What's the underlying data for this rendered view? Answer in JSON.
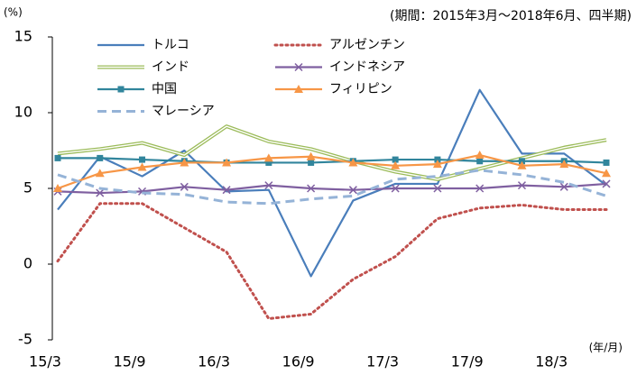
{
  "chart_data": {
    "type": "line",
    "y_unit": "(%)",
    "note": "(期間：2015年3月～2018年6月、四半期)",
    "x_unit": "(年/月)",
    "categories": [
      "15/3",
      null,
      "15/9",
      null,
      "16/3",
      null,
      "16/9",
      null,
      "17/3",
      null,
      "17/9",
      null,
      "18/3",
      null
    ],
    "ylim": [
      -5,
      15
    ],
    "yticks": [
      15,
      10,
      5,
      0,
      -5
    ],
    "grid": false,
    "series": [
      {
        "name": "トルコ",
        "color": "#4a7ebb",
        "style": "solid",
        "values": [
          3.6,
          7.1,
          5.8,
          7.5,
          4.8,
          4.9,
          -0.8,
          4.2,
          5.3,
          5.3,
          11.5,
          7.3,
          7.3,
          5.2
        ]
      },
      {
        "name": "アルゼンチン",
        "color": "#c0504d",
        "style": "dotted",
        "values": [
          0.2,
          4.0,
          4.0,
          2.4,
          0.8,
          -3.6,
          -3.3,
          -1.0,
          0.5,
          3.0,
          3.7,
          3.9,
          3.6,
          3.6
        ]
      },
      {
        "name": "インド",
        "color": "#9bbb59",
        "style": "double",
        "values": [
          7.3,
          7.6,
          8.0,
          7.2,
          9.1,
          8.1,
          7.6,
          6.8,
          6.1,
          5.6,
          6.3,
          7.0,
          7.7,
          8.2
        ]
      },
      {
        "name": "インドネシア",
        "color": "#7f5fa0",
        "style": "solid",
        "marker": "x",
        "values": [
          4.8,
          4.7,
          4.8,
          5.1,
          4.9,
          5.2,
          5.0,
          4.9,
          5.0,
          5.0,
          5.0,
          5.2,
          5.1,
          5.3
        ]
      },
      {
        "name": "中国",
        "color": "#31859c",
        "style": "solid",
        "marker": "square",
        "values": [
          7.0,
          7.0,
          6.9,
          6.8,
          6.7,
          6.7,
          6.7,
          6.8,
          6.9,
          6.9,
          6.8,
          6.8,
          6.8,
          6.7
        ]
      },
      {
        "name": "フィリピン",
        "color": "#f79646",
        "style": "solid",
        "marker": "triangle",
        "values": [
          5.0,
          6.0,
          6.4,
          6.7,
          6.7,
          7.0,
          7.1,
          6.7,
          6.5,
          6.6,
          7.2,
          6.5,
          6.6,
          6.0
        ]
      },
      {
        "name": "マレーシア",
        "color": "#95b3d7",
        "style": "dashed",
        "values": [
          5.9,
          5.0,
          4.7,
          4.6,
          4.1,
          4.0,
          4.3,
          4.5,
          5.6,
          5.8,
          6.2,
          5.9,
          5.4,
          4.5
        ]
      }
    ]
  }
}
